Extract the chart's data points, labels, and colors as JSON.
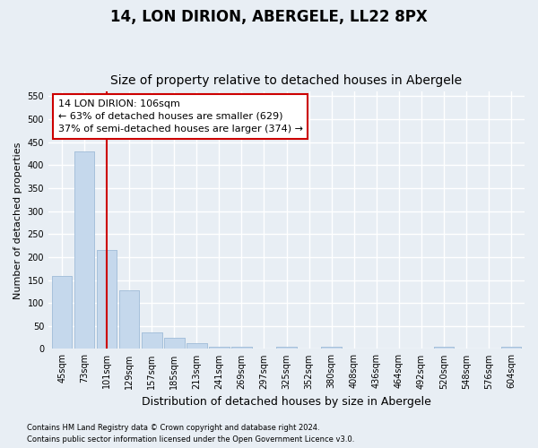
{
  "title": "14, LON DIRION, ABERGELE, LL22 8PX",
  "subtitle": "Size of property relative to detached houses in Abergele",
  "xlabel": "Distribution of detached houses by size in Abergele",
  "ylabel": "Number of detached properties",
  "categories": [
    "45sqm",
    "73sqm",
    "101sqm",
    "129sqm",
    "157sqm",
    "185sqm",
    "213sqm",
    "241sqm",
    "269sqm",
    "297sqm",
    "325sqm",
    "352sqm",
    "380sqm",
    "408sqm",
    "436sqm",
    "464sqm",
    "492sqm",
    "520sqm",
    "548sqm",
    "576sqm",
    "604sqm"
  ],
  "values": [
    158,
    430,
    215,
    127,
    35,
    24,
    12,
    5,
    5,
    0,
    5,
    0,
    5,
    0,
    0,
    0,
    0,
    5,
    0,
    0,
    5
  ],
  "bar_color": "#c5d8ec",
  "bar_edge_color": "#a0bcd8",
  "vline_x_index": 2,
  "vline_color": "#cc0000",
  "annotation_line1": "14 LON DIRION: 106sqm",
  "annotation_line2": "← 63% of detached houses are smaller (629)",
  "annotation_line3": "37% of semi-detached houses are larger (374) →",
  "annotation_box_color": "#cc0000",
  "ylim": [
    0,
    560
  ],
  "yticks": [
    0,
    50,
    100,
    150,
    200,
    250,
    300,
    350,
    400,
    450,
    500,
    550
  ],
  "footnote1": "Contains HM Land Registry data © Crown copyright and database right 2024.",
  "footnote2": "Contains public sector information licensed under the Open Government Licence v3.0.",
  "background_color": "#e8eef4",
  "grid_color": "#ffffff",
  "title_fontsize": 12,
  "subtitle_fontsize": 10,
  "annotation_fontsize": 8,
  "axis_fontsize": 8,
  "tick_fontsize": 7,
  "footnote_fontsize": 6
}
